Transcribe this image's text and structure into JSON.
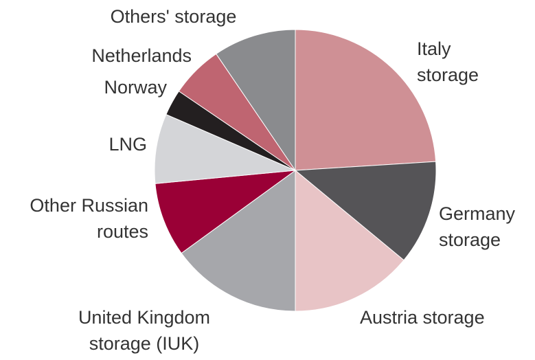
{
  "chart_data": {
    "type": "pie",
    "categories": [
      "Italy storage",
      "Germany storage",
      "Austria storage",
      "United Kingdom storage (IUK)",
      "Other Russian routes",
      "LNG",
      "Norway",
      "Netherlands",
      "Others' storage"
    ],
    "values": [
      24,
      12,
      14,
      15,
      8.5,
      8,
      3,
      6,
      9.5
    ],
    "colors": [
      "#cf9095",
      "#555457",
      "#e8c4c6",
      "#a6a7ab",
      "#9a0036",
      "#d4d5d8",
      "#231f20",
      "#bf6571",
      "#8a8b8e"
    ]
  }
}
